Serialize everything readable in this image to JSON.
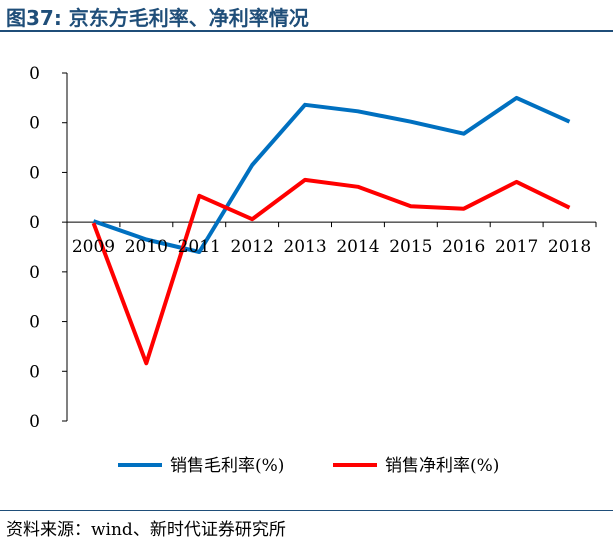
{
  "title": "图37:   京东方毛利率、净利率情况",
  "source": "资料来源：wind、新时代证券研究所",
  "colors": {
    "title": "#1f4e79",
    "gross": "#0070c0",
    "net": "#ff0000",
    "axis": "#000000"
  },
  "chart_data": {
    "type": "line",
    "categories": [
      "2009",
      "2010",
      "2011",
      "2012",
      "2013",
      "2014",
      "2015",
      "2016",
      "2017",
      "2018"
    ],
    "y_tick_labels": [
      "0",
      "0",
      "0",
      "0",
      "0",
      "0",
      "0",
      "0"
    ],
    "ylim": [
      -40,
      30
    ],
    "grid": false,
    "legend_position": "bottom",
    "series": [
      {
        "name": "销售毛利率(%)",
        "color": "#0070c0",
        "values": [
          0.2,
          -3.5,
          -6.0,
          11.5,
          23.6,
          22.3,
          20.2,
          17.8,
          25.0,
          20.2
        ]
      },
      {
        "name": "销售净利率(%)",
        "color": "#ff0000",
        "values": [
          -0.2,
          -28.4,
          5.3,
          0.6,
          8.5,
          7.1,
          3.2,
          2.7,
          8.1,
          2.9
        ]
      }
    ]
  }
}
